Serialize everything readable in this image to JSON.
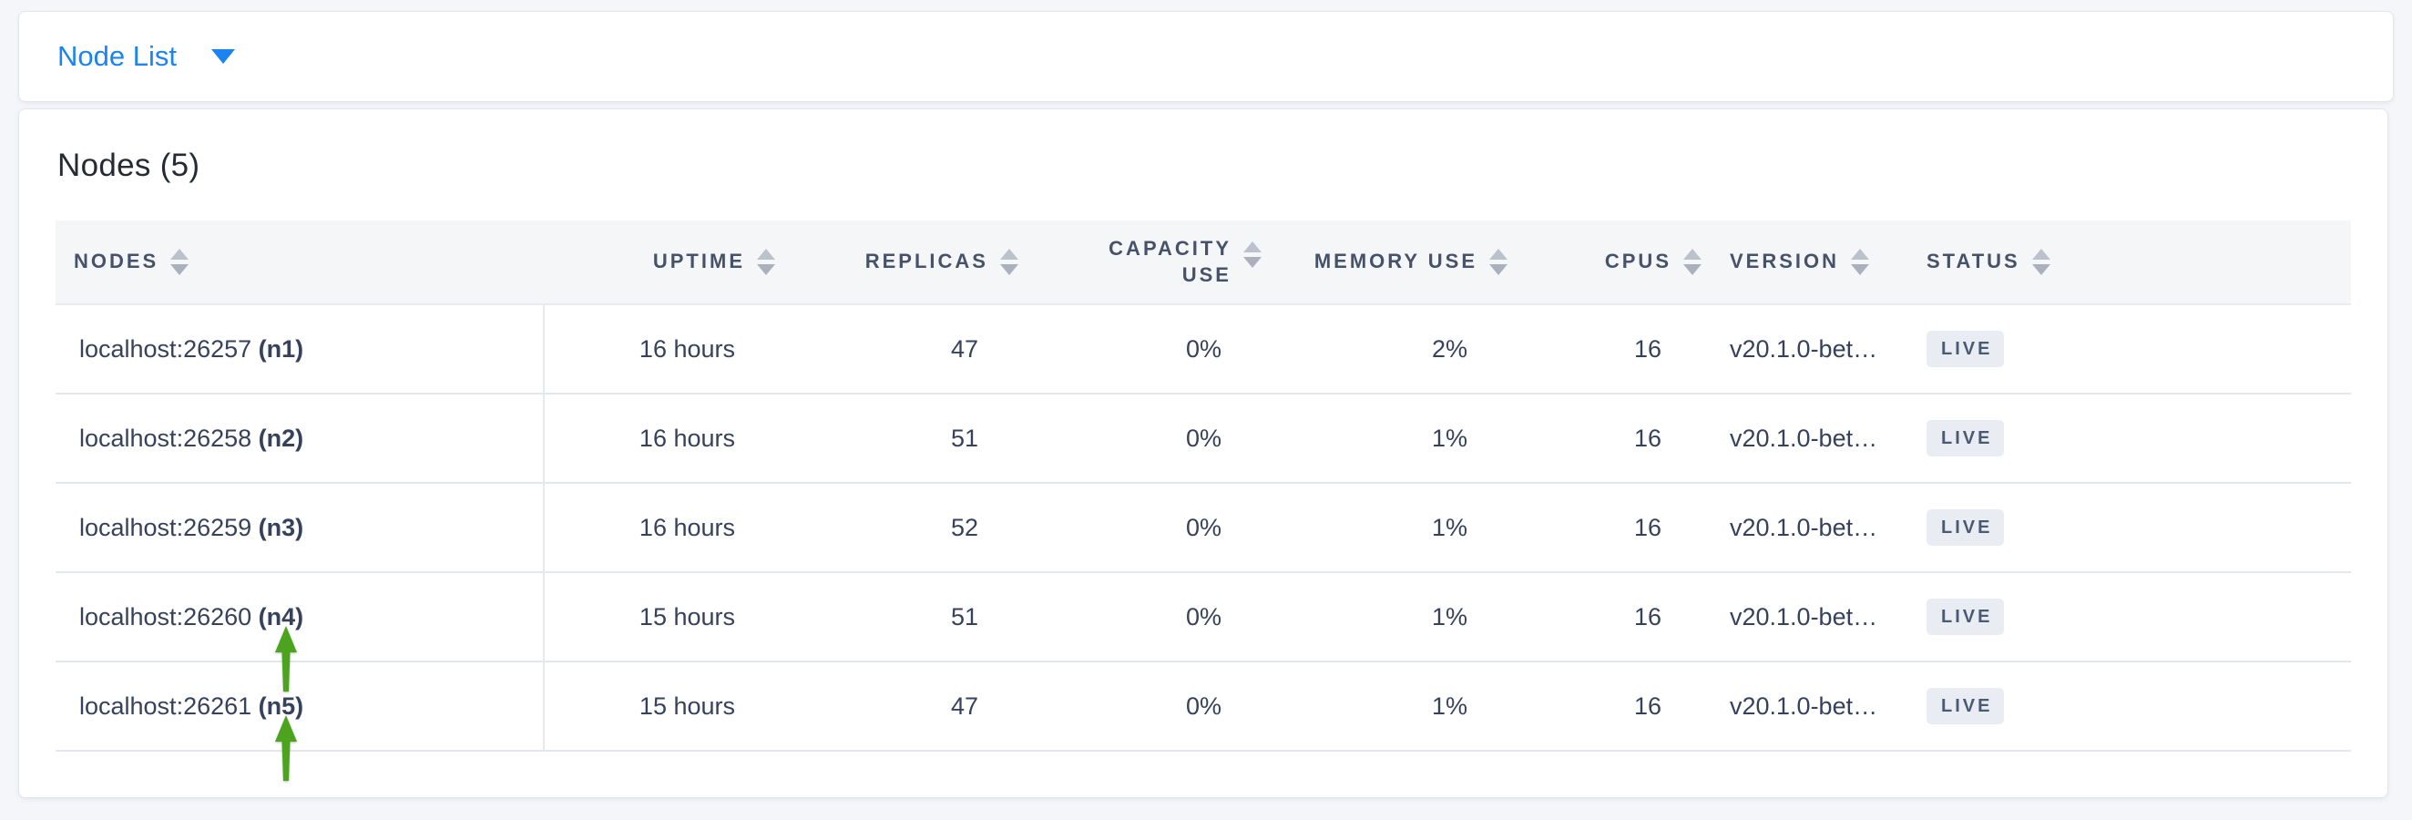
{
  "page": {
    "background_color": "#f4f6fa",
    "accent_blue": "#1b84f0",
    "annotation_green": "#4ca31d",
    "badge_bg": "#e9edf3",
    "badge_text": "#4b5a73",
    "header_text": "#46526a",
    "cell_text": "#36415b",
    "row_border": "#e3e8ef"
  },
  "topbar": {
    "dropdown_label": "Node List",
    "dropdown_icon": "caret-down-icon"
  },
  "main": {
    "title": "Nodes (5)",
    "table": {
      "columns": [
        {
          "key": "nodes",
          "label": "NODES",
          "align": "left",
          "sortable": true,
          "wrap": false
        },
        {
          "key": "uptime",
          "label": "UPTIME",
          "align": "right",
          "sortable": true,
          "wrap": false
        },
        {
          "key": "replicas",
          "label": "REPLICAS",
          "align": "right",
          "sortable": true,
          "wrap": false
        },
        {
          "key": "capacity_use",
          "label": "CAPACITY USE",
          "align": "right",
          "sortable": true,
          "wrap": true
        },
        {
          "key": "memory_use",
          "label": "MEMORY USE",
          "align": "right",
          "sortable": true,
          "wrap": false
        },
        {
          "key": "cpus",
          "label": "CPUS",
          "align": "right",
          "sortable": true,
          "wrap": false
        },
        {
          "key": "version",
          "label": "VERSION",
          "align": "left",
          "sortable": true,
          "wrap": false
        },
        {
          "key": "status",
          "label": "STATUS",
          "align": "left",
          "sortable": true,
          "wrap": false
        }
      ],
      "rows": [
        {
          "address": "localhost:26257",
          "node_id": "(n1)",
          "uptime": "16 hours",
          "replicas": "47",
          "capacity_use": "0%",
          "memory_use": "2%",
          "cpus": "16",
          "version": "v20.1.0-bet…",
          "status": "LIVE",
          "annotation_arrow": false
        },
        {
          "address": "localhost:26258",
          "node_id": "(n2)",
          "uptime": "16 hours",
          "replicas": "51",
          "capacity_use": "0%",
          "memory_use": "1%",
          "cpus": "16",
          "version": "v20.1.0-bet…",
          "status": "LIVE",
          "annotation_arrow": false
        },
        {
          "address": "localhost:26259",
          "node_id": "(n3)",
          "uptime": "16 hours",
          "replicas": "52",
          "capacity_use": "0%",
          "memory_use": "1%",
          "cpus": "16",
          "version": "v20.1.0-bet…",
          "status": "LIVE",
          "annotation_arrow": false
        },
        {
          "address": "localhost:26260",
          "node_id": "(n4)",
          "uptime": "15 hours",
          "replicas": "51",
          "capacity_use": "0%",
          "memory_use": "1%",
          "cpus": "16",
          "version": "v20.1.0-bet…",
          "status": "LIVE",
          "annotation_arrow": true
        },
        {
          "address": "localhost:26261",
          "node_id": "(n5)",
          "uptime": "15 hours",
          "replicas": "47",
          "capacity_use": "0%",
          "memory_use": "1%",
          "cpus": "16",
          "version": "v20.1.0-bet…",
          "status": "LIVE",
          "annotation_arrow": true
        }
      ]
    }
  }
}
